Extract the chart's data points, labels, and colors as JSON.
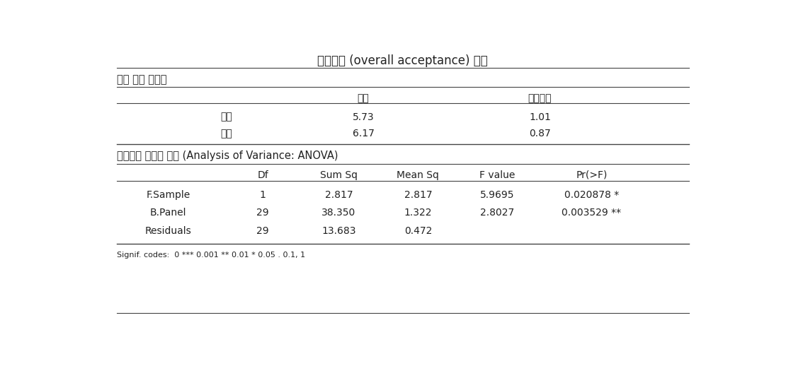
{
  "title": "종합기호 (overall acceptance) 분석",
  "section1_label": "평균 요약 테이블",
  "section1_col1": "평균",
  "section1_col2": "표준편차",
  "section1_rows": [
    {
      "label": "기본",
      "mean": "5.73",
      "std": "1.01"
    },
    {
      "label": "미강",
      "mean": "6.17",
      "std": "0.87"
    }
  ],
  "section2_label": "기호평균 유의차 검정 (Analysis of Variance: ANOVA)",
  "section2_headers": [
    "",
    "Df",
    "Sum Sq",
    "Mean Sq",
    "F value",
    "Pr(>F)"
  ],
  "section2_rows": [
    {
      "name": "F.Sample",
      "df": "1",
      "sum_sq": "2.817",
      "mean_sq": "2.817",
      "f_value": "5.9695",
      "pr": "0.020878 *"
    },
    {
      "name": "B.Panel",
      "df": "29",
      "sum_sq": "38.350",
      "mean_sq": "1.322",
      "f_value": "2.8027",
      "pr": "0.003529 **"
    },
    {
      "name": "Residuals",
      "df": "29",
      "sum_sq": "13.683",
      "mean_sq": "0.472",
      "f_value": "",
      "pr": ""
    }
  ],
  "signif_note": "Signif. codes:  0 *** 0.001 ** 0.01 * 0.05 . 0.1, 1",
  "bg_color": "#ffffff",
  "text_color": "#222222",
  "line_color": "#444444",
  "font_size_title": 12,
  "font_size_section": 10.5,
  "font_size_body": 10,
  "font_size_note": 8
}
